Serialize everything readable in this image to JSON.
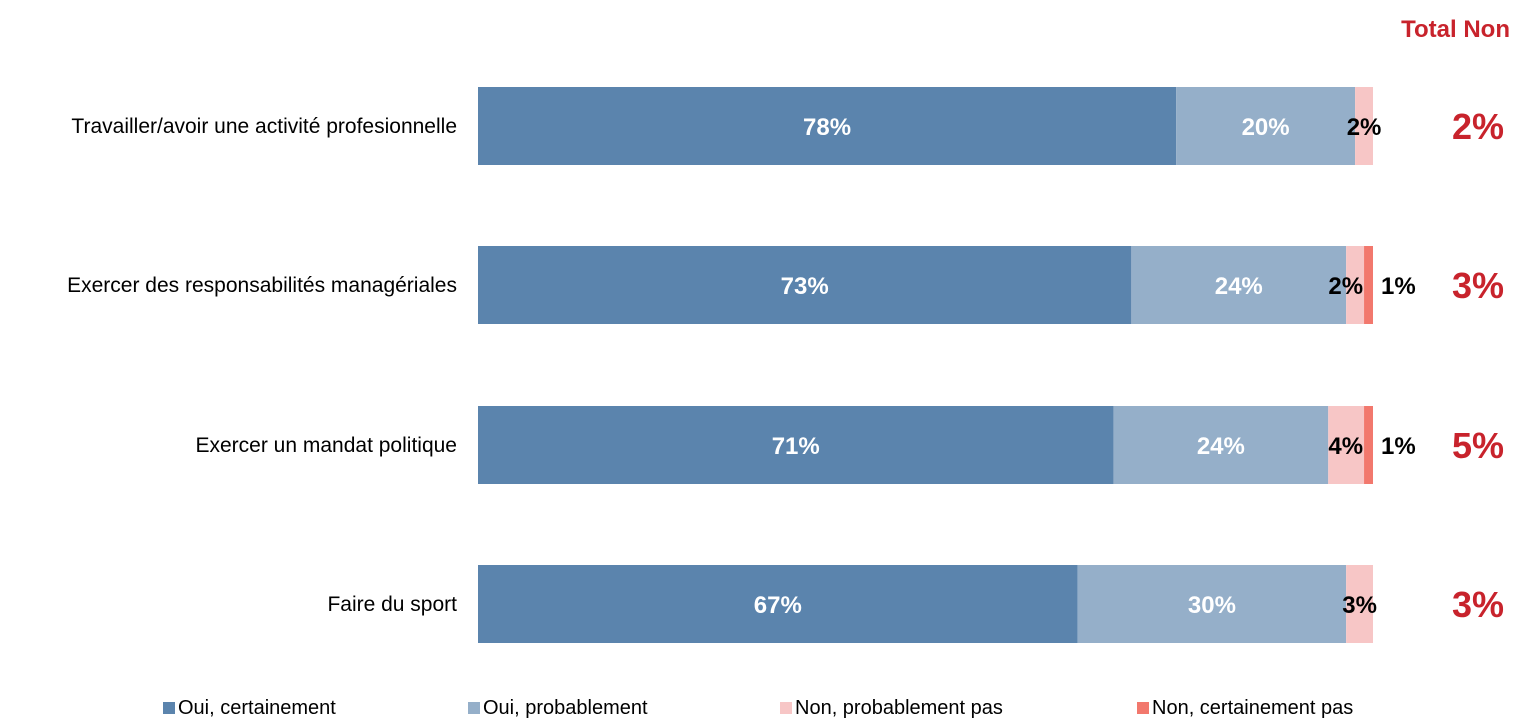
{
  "chart_data": {
    "type": "bar",
    "orientation": "horizontal",
    "stacked": true,
    "categories": [
      "Travailler/avoir une activité profesionnelle",
      "Exercer des responsabilités managériales",
      "Exercer un mandat politique",
      "Faire du sport"
    ],
    "series": [
      {
        "name": "Oui, certainement",
        "values": [
          78,
          73,
          71,
          67
        ],
        "color": "#5b84ad",
        "label_color": "#ffffff"
      },
      {
        "name": "Oui, probablement",
        "values": [
          20,
          24,
          24,
          30
        ],
        "color": "#95afc9",
        "label_color": "#ffffff"
      },
      {
        "name": "Non, probablement pas",
        "values": [
          2,
          2,
          4,
          3
        ],
        "color": "#f7c6c6",
        "label_color": "#000000"
      },
      {
        "name": "Non, certainement pas",
        "values": [
          0,
          1,
          1,
          0
        ],
        "color": "#f2786d",
        "label_color": "#000000"
      }
    ],
    "data_labels": [
      [
        "78%",
        "20%",
        "2%",
        ""
      ],
      [
        "73%",
        "24%",
        "2%",
        "1%"
      ],
      [
        "71%",
        "24%",
        "4%",
        "1%"
      ],
      [
        "67%",
        "30%",
        "3%",
        ""
      ]
    ],
    "total_non": {
      "header": "Total Non",
      "values": [
        "2%",
        "3%",
        "5%",
        "3%"
      ],
      "color": "#c8232c"
    },
    "xlim": [
      0,
      100
    ],
    "legend_position": "bottom",
    "grid": false
  }
}
